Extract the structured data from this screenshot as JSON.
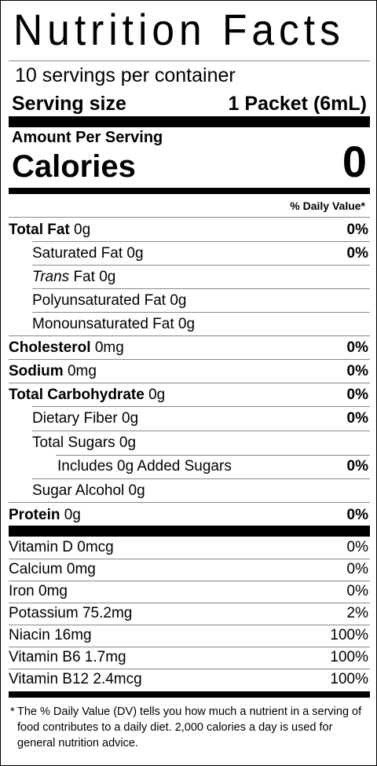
{
  "title": "Nutrition Facts",
  "servings_per_container": "10 servings per container",
  "serving_size_label": "Serving size",
  "serving_size_value": "1 Packet (6mL)",
  "amount_per_serving": "Amount Per Serving",
  "calories_label": "Calories",
  "calories_value": "0",
  "dv_header": "% Daily Value*",
  "nutrients": [
    {
      "name": "Total Fat",
      "amount": "0g",
      "dv": "0%"
    },
    {
      "name": "Saturated Fat",
      "amount": "0g",
      "dv": "0%"
    },
    {
      "name_italic": "Trans",
      "name": "Fat",
      "amount": "0g"
    },
    {
      "name": "Polyunsaturated Fat",
      "amount": "0g"
    },
    {
      "name": "Monounsaturated Fat",
      "amount": "0g"
    },
    {
      "name": "Cholesterol",
      "amount": "0mg",
      "dv": "0%"
    },
    {
      "name": "Sodium",
      "amount": "0mg",
      "dv": "0%"
    },
    {
      "name": "Total Carbohydrate",
      "amount": "0g",
      "dv": "0%"
    },
    {
      "name": "Dietary Fiber",
      "amount": "0g",
      "dv": "0%"
    },
    {
      "name": "Total Sugars",
      "amount": "0g"
    },
    {
      "name": "Includes 0g Added Sugars",
      "dv": "0%"
    },
    {
      "name": "Sugar Alcohol",
      "amount": "0g"
    },
    {
      "name": "Protein",
      "amount": "0g",
      "dv": "0%"
    }
  ],
  "vitamins": [
    {
      "name": "Vitamin D 0mcg",
      "dv": "0%"
    },
    {
      "name": "Calcium 0mg",
      "dv": "0%"
    },
    {
      "name": "Iron 0mg",
      "dv": "0%"
    },
    {
      "name": "Potassium 75.2mg",
      "dv": "2%"
    },
    {
      "name": "Niacin 16mg",
      "dv": "100%"
    },
    {
      "name": "Vitamin B6 1.7mg",
      "dv": "100%"
    },
    {
      "name": "Vitamin B12 2.4mcg",
      "dv": "100%"
    }
  ],
  "footnote_star": "*",
  "footnote": "The % Daily Value (DV) tells you how much a nutrient in a serving of food contributes to a daily diet. 2,000 calories a day is used for general nutrition advice."
}
